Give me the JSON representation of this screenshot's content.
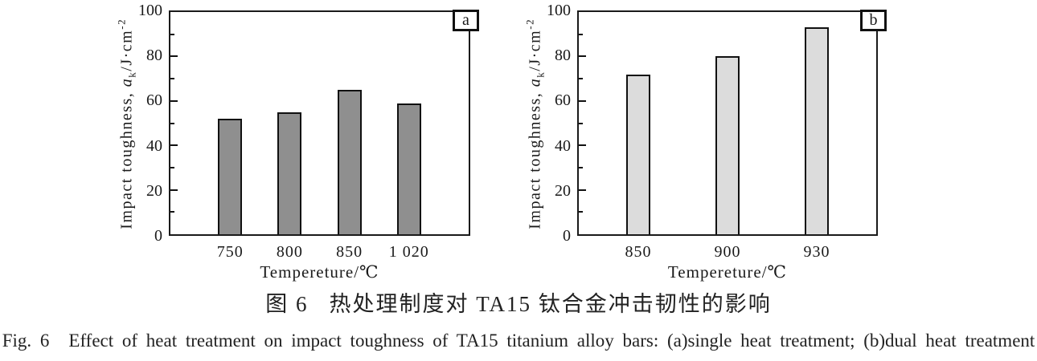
{
  "figure": {
    "caption_cn_label": "图 6",
    "caption_cn_text": "热处理制度对 TA15 钛合金冲击韧性的影响",
    "caption_en_label": "Fig. 6",
    "caption_en_text": "Effect of heat treatment on impact toughness of TA15 titanium alloy bars: (a)single heat treatment; (b)dual heat treatment"
  },
  "axis": {
    "ylabel_prefix": "Impact toughness, ",
    "ylabel_symbol": "a",
    "ylabel_subscript": "k",
    "ylabel_unit": "/J·cm",
    "ylabel_superscript": "-2",
    "xlabel": "Tempereture/℃"
  },
  "chart_data": [
    {
      "type": "bar",
      "panel": "a",
      "title": "",
      "categories": [
        "750",
        "800",
        "850",
        "1 020"
      ],
      "values": [
        52,
        55,
        65,
        59
      ],
      "xlabel": "Tempereture/℃",
      "ylabel": "Impact toughness, a_k/J·cm⁻²",
      "ylim": [
        0,
        100
      ],
      "yticks": [
        0,
        20,
        40,
        60,
        80,
        100
      ],
      "minor_yticks": [
        10,
        30,
        50,
        70,
        90
      ],
      "bar_color": "#8f8f8f",
      "bar_edge_color": "#111111",
      "grid": false,
      "legend": "none"
    },
    {
      "type": "bar",
      "panel": "b",
      "title": "",
      "categories": [
        "850",
        "900",
        "930"
      ],
      "values": [
        72,
        80,
        93
      ],
      "xlabel": "Tempereture/℃",
      "ylabel": "Impact toughness, a_k/J·cm⁻²",
      "ylim": [
        0,
        100
      ],
      "yticks": [
        0,
        20,
        40,
        60,
        80,
        100
      ],
      "minor_yticks": [
        10,
        30,
        50,
        70,
        90
      ],
      "bar_color": "#dcdcdc",
      "bar_edge_color": "#111111",
      "grid": false,
      "legend": "none"
    }
  ]
}
